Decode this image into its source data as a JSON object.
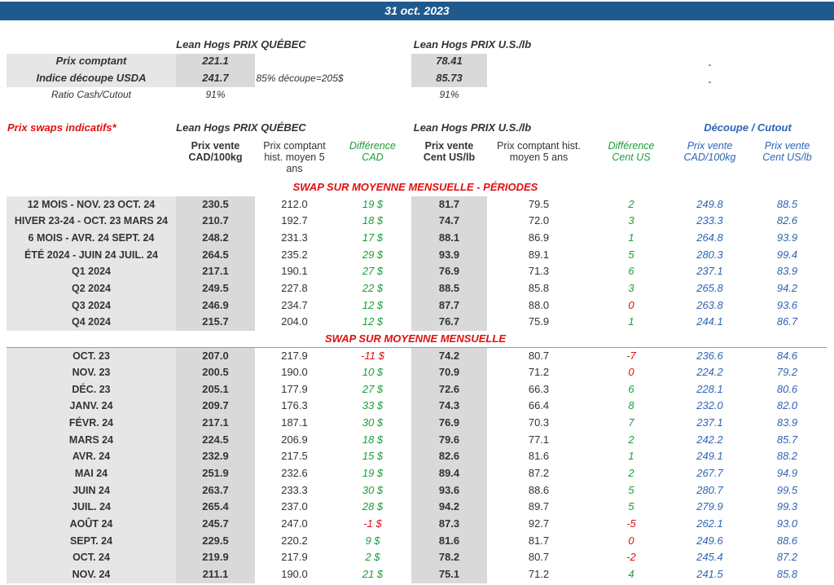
{
  "header": {
    "date": "31 oct. 2023"
  },
  "summary": {
    "quebec_title": "Lean Hogs PRIX QUÉBEC",
    "us_title": "Lean Hogs PRIX U.S./lb",
    "rows": [
      {
        "label": "Prix comptant",
        "quebec": "221.1",
        "us": "78.41",
        "cutout": "-"
      },
      {
        "label": "Indice découpe USDA",
        "quebec": "241.7",
        "note": "85% découpe=205$",
        "us": "85.73",
        "cutout": "-"
      },
      {
        "label": "Ratio Cash/Cutout",
        "quebec": "91%",
        "us": "91%"
      }
    ]
  },
  "swaps": {
    "title": "Prix swaps indicatifs*",
    "quebec_title": "Lean Hogs PRIX QUÉBEC",
    "us_title": "Lean Hogs PRIX U.S./lb",
    "cutout_title": "Découpe / Cutout",
    "columns": [
      "Prix vente\nCAD/100kg",
      "Prix comptant\nhist. moyen 5\nans",
      "Différence\nCAD",
      "Prix vente\nCent US/lb",
      "Prix comptant hist.\nmoyen 5 ans",
      "Différence\nCent US",
      "Prix vente\nCAD/100kg",
      "Prix vente\nCent US/lb"
    ],
    "sections": [
      {
        "title": "SWAP SUR MOYENNE MENSUELLE - PÉRIODES",
        "rows": [
          [
            "12 MOIS - NOV. 23 OCT. 24",
            "230.5",
            "212.0",
            "19 $",
            "81.7",
            "79.5",
            "2",
            "249.8",
            "88.5"
          ],
          [
            "HIVER 23-24 -  OCT. 23 MARS 24",
            "210.7",
            "192.7",
            "18 $",
            "74.7",
            "72.0",
            "3",
            "233.3",
            "82.6"
          ],
          [
            "6 MOIS -  AVR. 24 SEPT. 24",
            "248.2",
            "231.3",
            "17 $",
            "88.1",
            "86.9",
            "1",
            "264.8",
            "93.9"
          ],
          [
            "ÉTÉ 2024 - JUIN 24 JUIL. 24",
            "264.5",
            "235.2",
            "29 $",
            "93.9",
            "89.1",
            "5",
            "280.3",
            "99.4"
          ],
          [
            "Q1 2024",
            "217.1",
            "190.1",
            "27 $",
            "76.9",
            "71.3",
            "6",
            "237.1",
            "83.9"
          ],
          [
            "Q2 2024",
            "249.5",
            "227.8",
            "22 $",
            "88.5",
            "85.8",
            "3",
            "265.8",
            "94.2"
          ],
          [
            "Q3 2024",
            "246.9",
            "234.7",
            "12 $",
            "87.7",
            "88.0",
            "0",
            "263.8",
            "93.6"
          ],
          [
            "Q4 2024",
            "215.7",
            "204.0",
            "12 $",
            "76.7",
            "75.9",
            "1",
            "244.1",
            "86.7"
          ]
        ]
      },
      {
        "title": "SWAP SUR MOYENNE MENSUELLE",
        "rows": [
          [
            "OCT. 23",
            "207.0",
            "217.9",
            "-11 $",
            "74.2",
            "80.7",
            "-7",
            "236.6",
            "84.6"
          ],
          [
            "NOV. 23",
            "200.5",
            "190.0",
            "10 $",
            "70.9",
            "71.2",
            "0",
            "224.2",
            "79.2"
          ],
          [
            "DÉC. 23",
            "205.1",
            "177.9",
            "27 $",
            "72.6",
            "66.3",
            "6",
            "228.1",
            "80.6"
          ],
          [
            "JANV. 24",
            "209.7",
            "176.3",
            "33 $",
            "74.3",
            "66.4",
            "8",
            "232.0",
            "82.0"
          ],
          [
            "FÉVR. 24",
            "217.1",
            "187.1",
            "30 $",
            "76.9",
            "70.3",
            "7",
            "237.1",
            "83.9"
          ],
          [
            "MARS 24",
            "224.5",
            "206.9",
            "18 $",
            "79.6",
            "77.1",
            "2",
            "242.2",
            "85.7"
          ],
          [
            "AVR. 24",
            "232.9",
            "217.5",
            "15 $",
            "82.6",
            "81.6",
            "1",
            "249.1",
            "88.2"
          ],
          [
            "MAI 24",
            "251.9",
            "232.6",
            "19 $",
            "89.4",
            "87.2",
            "2",
            "267.7",
            "94.9"
          ],
          [
            "JUIN 24",
            "263.7",
            "233.3",
            "30 $",
            "93.6",
            "88.6",
            "5",
            "280.7",
            "99.5"
          ],
          [
            "JUIL. 24",
            "265.4",
            "237.0",
            "28 $",
            "94.2",
            "89.7",
            "5",
            "279.9",
            "99.3"
          ],
          [
            "AOÛT 24",
            "245.7",
            "247.0",
            "-1 $",
            "87.3",
            "92.7",
            "-5",
            "262.1",
            "93.0"
          ],
          [
            "SEPT. 24",
            "229.5",
            "220.2",
            "9 $",
            "81.6",
            "81.7",
            "0",
            "249.6",
            "88.6"
          ],
          [
            "OCT. 24",
            "219.9",
            "217.9",
            "2 $",
            "78.2",
            "80.7",
            "-2",
            "245.4",
            "87.2"
          ],
          [
            "NOV. 24",
            "211.1",
            "190.0",
            "21 $",
            "75.1",
            "71.2",
            "4",
            "241.5",
            "85.8"
          ]
        ]
      }
    ]
  }
}
